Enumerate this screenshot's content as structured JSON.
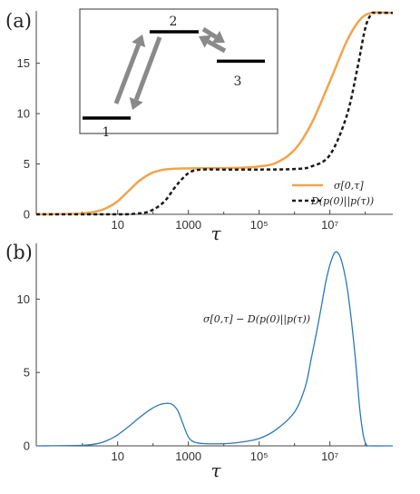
{
  "chart_data": [
    {
      "panel_label": "(a)",
      "type": "line",
      "x_scale": "log",
      "xlabel": "τ",
      "xlim": [
        0.05,
        600000000.0
      ],
      "ylim": [
        0,
        20.2
      ],
      "xticks": [
        {
          "v": 10,
          "label": "10"
        },
        {
          "v": 1000,
          "label": "1000"
        },
        {
          "v": 100000,
          "label": "10⁵"
        },
        {
          "v": 10000000,
          "label": "10⁷"
        }
      ],
      "yticks": [
        {
          "v": 0,
          "label": "0"
        },
        {
          "v": 5,
          "label": "5"
        },
        {
          "v": 10,
          "label": "10"
        },
        {
          "v": 15,
          "label": "15"
        }
      ],
      "legend": "bottom-right",
      "series": [
        {
          "name": "σ[0,τ]",
          "color": "#F2A44B",
          "style": "solid",
          "points": [
            [
              0.05,
              0
            ],
            [
              0.3,
              0.02
            ],
            [
              1,
              0.08
            ],
            [
              3,
              0.35
            ],
            [
              6,
              0.8
            ],
            [
              10,
              1.3
            ],
            [
              20,
              2.3
            ],
            [
              40,
              3.3
            ],
            [
              80,
              4.0
            ],
            [
              150,
              4.35
            ],
            [
              300,
              4.5
            ],
            [
              700,
              4.55
            ],
            [
              3000,
              4.58
            ],
            [
              30000,
              4.62
            ],
            [
              100000,
              4.75
            ],
            [
              300000,
              5.1
            ],
            [
              1000000,
              6.4
            ],
            [
              3000000,
              9.0
            ],
            [
              10000000,
              13.2
            ],
            [
              30000000,
              17.2
            ],
            [
              70000000,
              19.3
            ],
            [
              150000000,
              20.0
            ],
            [
              600000000.0,
              20.0
            ]
          ]
        },
        {
          "name": "D(p(0)||p(τ))",
          "color": "#1a1a1a",
          "style": "dashed",
          "points": [
            [
              0.05,
              0
            ],
            [
              10,
              0
            ],
            [
              30,
              0.05
            ],
            [
              80,
              0.3
            ],
            [
              200,
              1.2
            ],
            [
              400,
              2.6
            ],
            [
              700,
              3.6
            ],
            [
              1200,
              4.25
            ],
            [
              2500,
              4.45
            ],
            [
              10000,
              4.45
            ],
            [
              100000,
              4.45
            ],
            [
              1000000,
              4.5
            ],
            [
              3000000,
              4.75
            ],
            [
              10000000,
              5.9
            ],
            [
              30000000,
              9.8
            ],
            [
              60000000,
              14.5
            ],
            [
              100000000,
              18.5
            ],
            [
              150000000,
              19.9
            ],
            [
              200000000,
              20.0
            ],
            [
              600000000.0,
              20.0
            ]
          ]
        }
      ],
      "inset": {
        "levels": [
          {
            "label": "1",
            "energy": 10.2
          },
          {
            "label": "2",
            "energy": 19.9
          },
          {
            "label": "3",
            "energy": 16.6
          }
        ],
        "arrow_color": "#8a8a8a"
      }
    },
    {
      "panel_label": "(b)",
      "type": "line",
      "x_scale": "log",
      "xlabel": "τ",
      "xlim": [
        0.05,
        600000000.0
      ],
      "ylim": [
        0,
        13.8
      ],
      "xticks": [
        {
          "v": 10,
          "label": "10"
        },
        {
          "v": 1000,
          "label": "1000"
        },
        {
          "v": 100000,
          "label": "10⁵"
        },
        {
          "v": 10000000,
          "label": "10⁷"
        }
      ],
      "yticks": [
        {
          "v": 0,
          "label": "0"
        },
        {
          "v": 5,
          "label": "5"
        },
        {
          "v": 10,
          "label": "10"
        }
      ],
      "annotation": "σ[0,τ] − D(p(0)||p(τ))",
      "series": [
        {
          "name": "σ[0,τ] − D(p(0)||p(τ))",
          "color": "#2E78B7",
          "style": "solid",
          "points": [
            [
              0.05,
              0
            ],
            [
              1,
              0.04
            ],
            [
              3,
              0.18
            ],
            [
              6,
              0.45
            ],
            [
              10,
              0.75
            ],
            [
              20,
              1.3
            ],
            [
              40,
              1.9
            ],
            [
              80,
              2.45
            ],
            [
              150,
              2.8
            ],
            [
              250,
              2.9
            ],
            [
              350,
              2.82
            ],
            [
              500,
              2.4
            ],
            [
              700,
              1.5
            ],
            [
              1000,
              0.6
            ],
            [
              1500,
              0.25
            ],
            [
              3000,
              0.15
            ],
            [
              10000,
              0.15
            ],
            [
              30000,
              0.25
            ],
            [
              100000,
              0.5
            ],
            [
              300000,
              1.1
            ],
            [
              1000000,
              2.3
            ],
            [
              2000000,
              4.0
            ],
            [
              3000000,
              6.0
            ],
            [
              5000000,
              8.7
            ],
            [
              8000000,
              11.4
            ],
            [
              12000000,
              12.9
            ],
            [
              16000000,
              13.2
            ],
            [
              22000000,
              12.5
            ],
            [
              32000000,
              10.5
            ],
            [
              50000000,
              6.5
            ],
            [
              70000000,
              2.5
            ],
            [
              90000000,
              0.6
            ],
            [
              110000000,
              0.05
            ],
            [
              130000000,
              0
            ],
            [
              600000000.0,
              0
            ]
          ]
        }
      ]
    }
  ]
}
